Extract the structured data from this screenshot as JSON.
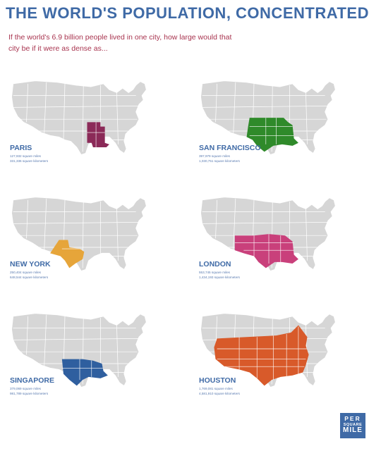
{
  "header": {
    "title": "THE WORLD'S POPULATION, CONCENTRATED",
    "subtitle": "If the world's 6.9 billion people lived in one city, how large would that city be if it were as dense as..."
  },
  "panels": [
    {
      "city": "PARIS",
      "sq_miles": "127,932 square miles",
      "sq_km": "331,336 square kilometers",
      "color": "#8b2a58"
    },
    {
      "city": "SAN FRANCISCO",
      "sq_miles": "397,979 square miles",
      "sq_km": "1,030,751 square kilometers",
      "color": "#2f8a2a"
    },
    {
      "city": "NEW YORK",
      "sq_miles": "250,404 square miles",
      "sq_km": "648,544 square kilometers",
      "color": "#e6a53a"
    },
    {
      "city": "LONDON",
      "sq_miles": "553,745 square miles",
      "sq_km": "1,434,193 square kilometers",
      "color": "#c9407b"
    },
    {
      "city": "SINGAPORE",
      "sq_miles": "379,069 square miles",
      "sq_km": "981,789 square kilometers",
      "color": "#2f5f9f"
    },
    {
      "city": "HOUSTON",
      "sq_miles": "1,769,081 square miles",
      "sq_km": "4,581,910 square kilometers",
      "color": "#d85a2a"
    }
  ],
  "logo": {
    "line1": "PER",
    "line2": "SQUARE",
    "line3": "MILE"
  }
}
